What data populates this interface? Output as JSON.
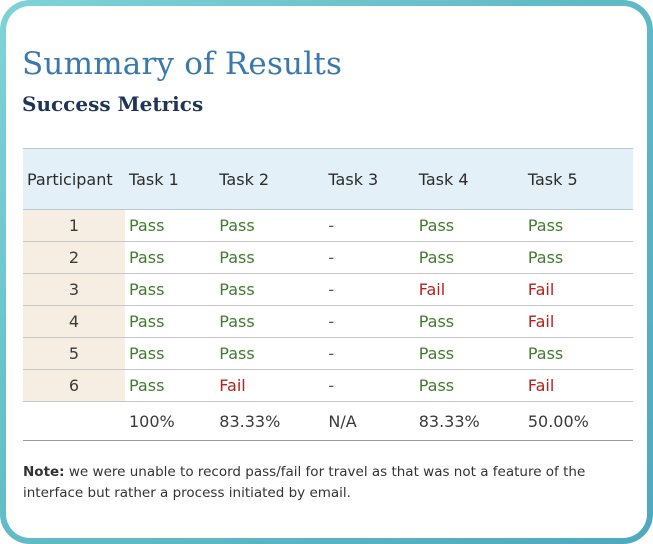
{
  "title": "Summary of Results",
  "subtitle": "Success Metrics",
  "table": {
    "headers": [
      "Participant",
      "Task 1",
      "Task 2",
      "Task 3",
      "Task 4",
      "Task 5"
    ],
    "rows": [
      {
        "participant": "1",
        "results": [
          "Pass",
          "Pass",
          "-",
          "Pass",
          "Pass"
        ]
      },
      {
        "participant": "2",
        "results": [
          "Pass",
          "Pass",
          "-",
          "Pass",
          "Pass"
        ]
      },
      {
        "participant": "3",
        "results": [
          "Pass",
          "Pass",
          "-",
          "Fail",
          "Fail"
        ]
      },
      {
        "participant": "4",
        "results": [
          "Pass",
          "Pass",
          "-",
          "Pass",
          "Fail"
        ]
      },
      {
        "participant": "5",
        "results": [
          "Pass",
          "Pass",
          "-",
          "Pass",
          "Pass"
        ]
      },
      {
        "participant": "6",
        "results": [
          "Pass",
          "Fail",
          "-",
          "Pass",
          "Fail"
        ]
      }
    ],
    "totals": [
      "100%",
      "83.33%",
      "N/A",
      "83.33%",
      "50.00%"
    ]
  },
  "note": {
    "label": "Note:",
    "text": " we were unable to record pass/fail for travel as that was not a feature of the interface but rather a process initiated by email."
  },
  "colors": {
    "pass": "#3f7d2d",
    "fail": "#b5211b",
    "title": "#3a78ad",
    "header_bg": "#e3f0f8",
    "participant_bg": "#f6ede3",
    "frame": "#5fbac6"
  }
}
